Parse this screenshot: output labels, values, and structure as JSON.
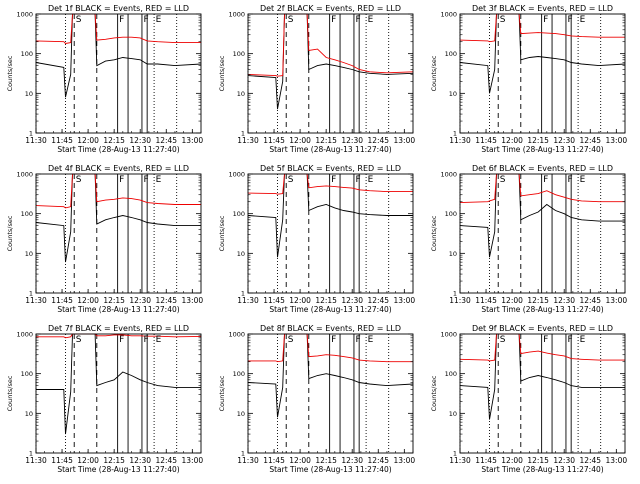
{
  "colors": {
    "events": "#000000",
    "lld": "#ee0000",
    "background": "#ffffff"
  },
  "shared": {
    "x_tick_labels": [
      "11:30",
      "11:45",
      "12:00",
      "12:15",
      "12:30",
      "12:45",
      "13:00"
    ],
    "y_tick_labels": [
      "1",
      "10",
      "100",
      "1000"
    ],
    "y_axis_label": "Counts/sec",
    "x_axis_label": "Start Time (28-Aug-13 11:27:40)",
    "y_scale": "log",
    "ylim": [
      1,
      1000
    ],
    "x_unit": "minutes after 11:30",
    "xlim": [
      0,
      95
    ],
    "markers": [
      {
        "label": "E",
        "x": 0,
        "style": "dotted",
        "visible": false
      },
      {
        "label": "",
        "x": 17,
        "style": "dotted"
      },
      {
        "label": "S",
        "x": 22,
        "style": "dashed"
      },
      {
        "label": "",
        "x": 35,
        "style": "dashed"
      },
      {
        "label": "F",
        "x": 47,
        "style": "solid"
      },
      {
        "label": "",
        "x": 53,
        "style": "solid"
      },
      {
        "label": "F",
        "x": 61,
        "style": "solid"
      },
      {
        "label": "",
        "x": 64,
        "style": "solid"
      },
      {
        "label": "E",
        "x": 68,
        "style": "dotted"
      },
      {
        "label": "",
        "x": 81,
        "style": "dotted"
      }
    ]
  },
  "chart_data": [
    {
      "type": "line",
      "title": "Det 1f BLACK = Events, RED = LLD",
      "series": [
        {
          "name": "Events",
          "color": "#000000",
          "x": [
            0,
            16,
            17,
            20,
            21,
            27,
            30,
            34,
            35,
            40,
            45,
            50,
            55,
            60,
            64,
            70,
            80,
            95
          ],
          "y": [
            60,
            45,
            8,
            30,
            1000,
            1000,
            1000,
            1000,
            50,
            65,
            70,
            80,
            75,
            70,
            55,
            55,
            50,
            55
          ]
        },
        {
          "name": "LLD",
          "color": "#ee0000",
          "x": [
            0,
            16,
            17,
            20,
            21,
            27,
            30,
            34,
            35,
            40,
            45,
            50,
            55,
            60,
            64,
            70,
            80,
            95
          ],
          "y": [
            210,
            200,
            180,
            190,
            1000,
            1000,
            1000,
            1000,
            220,
            230,
            250,
            260,
            260,
            250,
            210,
            200,
            190,
            190
          ]
        }
      ]
    },
    {
      "type": "line",
      "title": "Det 2f BLACK = Events, RED = LLD",
      "series": [
        {
          "name": "Events",
          "color": "#000000",
          "x": [
            0,
            16,
            17,
            20,
            21,
            27,
            30,
            34,
            35,
            40,
            45,
            50,
            55,
            60,
            64,
            70,
            80,
            95
          ],
          "y": [
            28,
            25,
            4,
            20,
            1000,
            1000,
            1000,
            1000,
            40,
            50,
            55,
            50,
            45,
            40,
            35,
            32,
            30,
            32
          ]
        },
        {
          "name": "LLD",
          "color": "#ee0000",
          "x": [
            0,
            16,
            17,
            20,
            21,
            27,
            30,
            34,
            35,
            40,
            45,
            50,
            55,
            60,
            64,
            70,
            80,
            95
          ],
          "y": [
            30,
            28,
            27,
            28,
            1000,
            1000,
            1000,
            1000,
            120,
            130,
            80,
            70,
            60,
            50,
            40,
            35,
            33,
            35
          ]
        }
      ]
    },
    {
      "type": "line",
      "title": "Det 3f BLACK = Events, RED = LLD",
      "series": [
        {
          "name": "Events",
          "color": "#000000",
          "x": [
            0,
            16,
            17,
            20,
            21,
            27,
            30,
            34,
            35,
            40,
            45,
            50,
            55,
            60,
            64,
            70,
            80,
            95
          ],
          "y": [
            60,
            50,
            10,
            40,
            1000,
            1000,
            1000,
            1000,
            70,
            80,
            85,
            80,
            75,
            70,
            60,
            55,
            50,
            55
          ]
        },
        {
          "name": "LLD",
          "color": "#ee0000",
          "x": [
            0,
            16,
            17,
            20,
            21,
            27,
            30,
            34,
            35,
            40,
            45,
            50,
            55,
            60,
            64,
            70,
            80,
            95
          ],
          "y": [
            220,
            210,
            200,
            210,
            1000,
            1000,
            1000,
            1000,
            320,
            330,
            340,
            330,
            320,
            300,
            280,
            270,
            260,
            260
          ]
        }
      ]
    },
    {
      "type": "line",
      "title": "Det 4f BLACK = Events, RED = LLD",
      "series": [
        {
          "name": "Events",
          "color": "#000000",
          "x": [
            0,
            16,
            17,
            20,
            21,
            27,
            30,
            34,
            35,
            40,
            45,
            50,
            55,
            60,
            64,
            70,
            80,
            95
          ],
          "y": [
            60,
            50,
            6,
            35,
            1000,
            1000,
            1000,
            1000,
            55,
            70,
            80,
            90,
            80,
            70,
            60,
            55,
            50,
            50
          ]
        },
        {
          "name": "LLD",
          "color": "#ee0000",
          "x": [
            0,
            16,
            17,
            20,
            21,
            27,
            30,
            34,
            35,
            40,
            45,
            50,
            55,
            60,
            64,
            70,
            80,
            95
          ],
          "y": [
            160,
            150,
            140,
            150,
            1000,
            1000,
            1000,
            1000,
            200,
            220,
            230,
            250,
            240,
            220,
            190,
            180,
            170,
            170
          ]
        }
      ]
    },
    {
      "type": "line",
      "title": "Det 5f BLACK = Events, RED = LLD",
      "series": [
        {
          "name": "Events",
          "color": "#000000",
          "x": [
            0,
            16,
            17,
            20,
            21,
            27,
            30,
            34,
            35,
            40,
            45,
            50,
            55,
            60,
            64,
            70,
            80,
            95
          ],
          "y": [
            90,
            80,
            8,
            70,
            1000,
            1000,
            1000,
            1000,
            120,
            150,
            170,
            140,
            120,
            110,
            100,
            95,
            90,
            90
          ]
        },
        {
          "name": "LLD",
          "color": "#ee0000",
          "x": [
            0,
            16,
            17,
            20,
            21,
            27,
            30,
            34,
            35,
            40,
            45,
            50,
            55,
            60,
            64,
            70,
            80,
            95
          ],
          "y": [
            330,
            320,
            310,
            320,
            1000,
            1000,
            1000,
            1000,
            450,
            480,
            500,
            480,
            460,
            440,
            400,
            380,
            360,
            360
          ]
        }
      ]
    },
    {
      "type": "line",
      "title": "Det 6f BLACK = Events, RED = LLD",
      "series": [
        {
          "name": "Events",
          "color": "#000000",
          "x": [
            0,
            16,
            17,
            20,
            21,
            27,
            30,
            34,
            35,
            40,
            45,
            50,
            55,
            60,
            64,
            70,
            80,
            95
          ],
          "y": [
            50,
            45,
            8,
            35,
            1000,
            1000,
            1000,
            1000,
            70,
            90,
            110,
            170,
            120,
            100,
            80,
            70,
            65,
            65
          ]
        },
        {
          "name": "LLD",
          "color": "#ee0000",
          "x": [
            0,
            16,
            17,
            20,
            21,
            27,
            30,
            34,
            35,
            40,
            45,
            50,
            55,
            60,
            64,
            70,
            80,
            95
          ],
          "y": [
            190,
            200,
            210,
            230,
            1000,
            1000,
            1000,
            1000,
            280,
            300,
            320,
            380,
            300,
            260,
            230,
            210,
            200,
            200
          ]
        }
      ]
    },
    {
      "type": "line",
      "title": "Det 7f BLACK = Events, RED = LLD",
      "series": [
        {
          "name": "Events",
          "color": "#000000",
          "x": [
            0,
            16,
            17,
            20,
            21,
            27,
            30,
            34,
            35,
            40,
            45,
            50,
            55,
            60,
            64,
            70,
            80,
            95
          ],
          "y": [
            40,
            40,
            3,
            35,
            1000,
            1000,
            1000,
            1000,
            50,
            60,
            70,
            110,
            90,
            70,
            60,
            50,
            45,
            45
          ]
        },
        {
          "name": "LLD",
          "color": "#ee0000",
          "x": [
            0,
            16,
            17,
            20,
            21,
            27,
            30,
            34,
            35,
            40,
            45,
            50,
            55,
            60,
            64,
            70,
            80,
            95
          ],
          "y": [
            850,
            850,
            800,
            850,
            1000,
            1000,
            1000,
            1000,
            900,
            900,
            950,
            950,
            900,
            900,
            880,
            880,
            850,
            870
          ]
        }
      ]
    },
    {
      "type": "line",
      "title": "Det 8f BLACK = Events, RED = LLD",
      "series": [
        {
          "name": "Events",
          "color": "#000000",
          "x": [
            0,
            16,
            17,
            20,
            21,
            27,
            30,
            34,
            35,
            40,
            45,
            50,
            55,
            60,
            64,
            70,
            80,
            95
          ],
          "y": [
            60,
            55,
            8,
            45,
            1000,
            1000,
            1000,
            1000,
            75,
            90,
            100,
            90,
            80,
            70,
            60,
            55,
            50,
            55
          ]
        },
        {
          "name": "LLD",
          "color": "#ee0000",
          "x": [
            0,
            16,
            17,
            20,
            21,
            27,
            30,
            34,
            35,
            40,
            45,
            50,
            55,
            60,
            64,
            70,
            80,
            95
          ],
          "y": [
            210,
            210,
            200,
            210,
            1000,
            1000,
            1000,
            1000,
            270,
            280,
            300,
            290,
            270,
            250,
            220,
            210,
            200,
            200
          ]
        }
      ]
    },
    {
      "type": "line",
      "title": "Det 9f BLACK = Events, RED = LLD",
      "series": [
        {
          "name": "Events",
          "color": "#000000",
          "x": [
            0,
            16,
            17,
            20,
            21,
            27,
            30,
            34,
            35,
            40,
            45,
            50,
            55,
            60,
            64,
            70,
            80,
            95
          ],
          "y": [
            50,
            45,
            7,
            40,
            1000,
            1000,
            1000,
            1000,
            65,
            80,
            90,
            80,
            70,
            60,
            50,
            45,
            45,
            45
          ]
        },
        {
          "name": "LLD",
          "color": "#ee0000",
          "x": [
            0,
            16,
            17,
            20,
            21,
            27,
            30,
            34,
            35,
            40,
            45,
            50,
            55,
            60,
            64,
            70,
            80,
            95
          ],
          "y": [
            230,
            220,
            210,
            220,
            1000,
            1000,
            1000,
            1000,
            320,
            350,
            370,
            330,
            300,
            280,
            240,
            230,
            220,
            220
          ]
        }
      ]
    }
  ]
}
